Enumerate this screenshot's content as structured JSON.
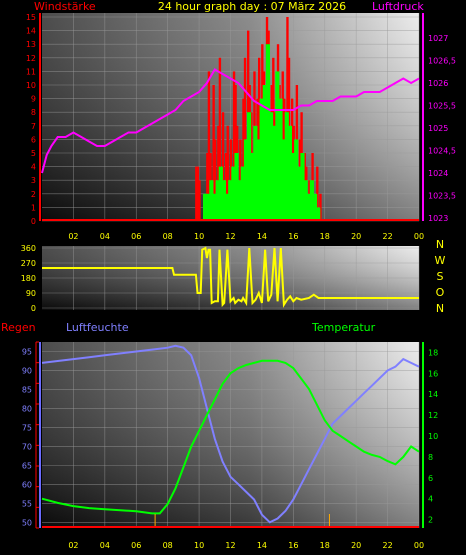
{
  "header": {
    "title": "24 hour graph day : 07 März 2026",
    "left": "Windstärke",
    "right": "Luftdruck"
  },
  "colors": {
    "wind_avg": "#00ff00",
    "wind_gust": "#ff0000",
    "pressure": "#ff00ff",
    "direction": "#ffff00",
    "humidity": "#8080ff",
    "temperature": "#00ff00",
    "rain": "#ff0000",
    "label_left": "#ff0000",
    "label_press": "#ff00ff"
  },
  "chart_data": [
    {
      "type": "bar",
      "panel": "wind",
      "x_ticks": [
        "02",
        "04",
        "06",
        "08",
        "10",
        "12",
        "14",
        "16",
        "18",
        "20",
        "22",
        "00"
      ],
      "y_ticks": [
        "0",
        "1",
        "2",
        "3",
        "4",
        "5",
        "6",
        "7",
        "8",
        "9",
        "10",
        "11",
        "12",
        "13",
        "14",
        "15"
      ],
      "ylim": [
        0,
        15
      ],
      "xlim": [
        0,
        24
      ],
      "series": [
        {
          "name": "gust",
          "points": [
            [
              9.8,
              4
            ],
            [
              9.9,
              4
            ],
            [
              10.0,
              3
            ],
            [
              10.5,
              5
            ],
            [
              10.6,
              11
            ],
            [
              10.7,
              5
            ],
            [
              10.9,
              10
            ],
            [
              11.0,
              6
            ],
            [
              11.2,
              7
            ],
            [
              11.3,
              12
            ],
            [
              11.5,
              8
            ],
            [
              11.7,
              5
            ],
            [
              11.8,
              7
            ],
            [
              12.0,
              6
            ],
            [
              12.2,
              11
            ],
            [
              12.3,
              10
            ],
            [
              12.4,
              7
            ],
            [
              12.6,
              6
            ],
            [
              12.8,
              9
            ],
            [
              12.9,
              12
            ],
            [
              13.1,
              14
            ],
            [
              13.2,
              10
            ],
            [
              13.3,
              8
            ],
            [
              13.5,
              11
            ],
            [
              13.7,
              9
            ],
            [
              13.8,
              12
            ],
            [
              14.0,
              13
            ],
            [
              14.1,
              11
            ],
            [
              14.3,
              15
            ],
            [
              14.4,
              14
            ],
            [
              14.6,
              10
            ],
            [
              14.7,
              12
            ],
            [
              14.8,
              8
            ],
            [
              15.0,
              13
            ],
            [
              15.1,
              10
            ],
            [
              15.3,
              11
            ],
            [
              15.4,
              9
            ],
            [
              15.6,
              15
            ],
            [
              15.7,
              12
            ],
            [
              15.9,
              9
            ],
            [
              16.0,
              7
            ],
            [
              16.2,
              10
            ],
            [
              16.4,
              6
            ],
            [
              16.5,
              8
            ],
            [
              16.7,
              5
            ],
            [
              16.8,
              4
            ],
            [
              17.0,
              3
            ],
            [
              17.2,
              5
            ],
            [
              17.5,
              4
            ],
            [
              17.7,
              2
            ]
          ]
        },
        {
          "name": "average",
          "points": [
            [
              10.3,
              2
            ],
            [
              10.5,
              2
            ],
            [
              10.7,
              3
            ],
            [
              10.9,
              2
            ],
            [
              11.1,
              3
            ],
            [
              11.3,
              4
            ],
            [
              11.5,
              3
            ],
            [
              11.7,
              2
            ],
            [
              11.9,
              3
            ],
            [
              12.1,
              4
            ],
            [
              12.3,
              5
            ],
            [
              12.5,
              3
            ],
            [
              12.7,
              4
            ],
            [
              12.9,
              6
            ],
            [
              13.1,
              8
            ],
            [
              13.3,
              5
            ],
            [
              13.5,
              7
            ],
            [
              13.7,
              6
            ],
            [
              13.9,
              9
            ],
            [
              14.1,
              10
            ],
            [
              14.3,
              13
            ],
            [
              14.5,
              8
            ],
            [
              14.7,
              7
            ],
            [
              14.9,
              11
            ],
            [
              15.1,
              9
            ],
            [
              15.3,
              6
            ],
            [
              15.5,
              8
            ],
            [
              15.7,
              7
            ],
            [
              15.9,
              5
            ],
            [
              16.1,
              6
            ],
            [
              16.3,
              4
            ],
            [
              16.5,
              5
            ],
            [
              16.7,
              3
            ],
            [
              16.9,
              2
            ],
            [
              17.1,
              3
            ],
            [
              17.3,
              2
            ],
            [
              17.5,
              1
            ]
          ]
        }
      ]
    },
    {
      "type": "line",
      "panel": "pressure",
      "y_ticks": [
        "1023",
        "1023,5",
        "1024",
        "1024,5",
        "1025",
        "1025,5",
        "1026",
        "1026,5",
        "1027"
      ],
      "ylim": [
        1023,
        1027.4
      ],
      "points": [
        [
          0,
          1024.0
        ],
        [
          0.3,
          1024.4
        ],
        [
          0.6,
          1024.6
        ],
        [
          1,
          1024.8
        ],
        [
          1.5,
          1024.8
        ],
        [
          2,
          1024.9
        ],
        [
          2.5,
          1024.8
        ],
        [
          3,
          1024.7
        ],
        [
          3.5,
          1024.6
        ],
        [
          4,
          1024.6
        ],
        [
          4.5,
          1024.7
        ],
        [
          5,
          1024.8
        ],
        [
          5.5,
          1024.9
        ],
        [
          6,
          1024.9
        ],
        [
          6.5,
          1025.0
        ],
        [
          7,
          1025.1
        ],
        [
          7.5,
          1025.2
        ],
        [
          8,
          1025.3
        ],
        [
          8.5,
          1025.4
        ],
        [
          9,
          1025.6
        ],
        [
          9.5,
          1025.7
        ],
        [
          10,
          1025.8
        ],
        [
          10.5,
          1026.0
        ],
        [
          11,
          1026.3
        ],
        [
          11.5,
          1026.2
        ],
        [
          12,
          1026.1
        ],
        [
          12.5,
          1026.0
        ],
        [
          13,
          1025.8
        ],
        [
          13.5,
          1025.6
        ],
        [
          14,
          1025.5
        ],
        [
          14.5,
          1025.4
        ],
        [
          15,
          1025.4
        ],
        [
          15.5,
          1025.4
        ],
        [
          16,
          1025.4
        ],
        [
          16.5,
          1025.5
        ],
        [
          17,
          1025.5
        ],
        [
          17.5,
          1025.6
        ],
        [
          18,
          1025.6
        ],
        [
          18.5,
          1025.6
        ],
        [
          19,
          1025.7
        ],
        [
          19.5,
          1025.7
        ],
        [
          20,
          1025.7
        ],
        [
          20.5,
          1025.8
        ],
        [
          21,
          1025.8
        ],
        [
          21.5,
          1025.8
        ],
        [
          22,
          1025.9
        ],
        [
          22.5,
          1026.0
        ],
        [
          23,
          1026.1
        ],
        [
          23.5,
          1026.0
        ],
        [
          24,
          1026.1
        ]
      ]
    },
    {
      "type": "line",
      "panel": "direction",
      "y_ticks": [
        "0",
        "90",
        "180",
        "270",
        "360"
      ],
      "right_labels": [
        "N",
        "W",
        "S",
        "O",
        "N"
      ],
      "ylim": [
        0,
        360
      ],
      "points": [
        [
          0,
          240
        ],
        [
          8.3,
          240
        ],
        [
          8.4,
          200
        ],
        [
          9,
          200
        ],
        [
          9.2,
          200
        ],
        [
          9.8,
          200
        ],
        [
          9.9,
          90
        ],
        [
          10.1,
          90
        ],
        [
          10.2,
          350
        ],
        [
          10.4,
          360
        ],
        [
          10.5,
          300
        ],
        [
          10.6,
          350
        ],
        [
          10.7,
          350
        ],
        [
          10.8,
          30
        ],
        [
          11,
          40
        ],
        [
          11.2,
          40
        ],
        [
          11.3,
          350
        ],
        [
          11.5,
          20
        ],
        [
          11.6,
          30
        ],
        [
          11.8,
          350
        ],
        [
          12,
          40
        ],
        [
          12.2,
          60
        ],
        [
          12.3,
          30
        ],
        [
          12.5,
          50
        ],
        [
          12.7,
          40
        ],
        [
          12.8,
          60
        ],
        [
          13,
          30
        ],
        [
          13.2,
          360
        ],
        [
          13.4,
          30
        ],
        [
          13.6,
          50
        ],
        [
          13.8,
          90
        ],
        [
          14,
          30
        ],
        [
          14.2,
          350
        ],
        [
          14.4,
          40
        ],
        [
          14.6,
          80
        ],
        [
          14.8,
          360
        ],
        [
          15,
          40
        ],
        [
          15.2,
          360
        ],
        [
          15.4,
          20
        ],
        [
          15.6,
          50
        ],
        [
          15.8,
          70
        ],
        [
          16,
          40
        ],
        [
          16.2,
          60
        ],
        [
          16.5,
          50
        ],
        [
          17,
          60
        ],
        [
          17.3,
          80
        ],
        [
          17.6,
          60
        ],
        [
          18,
          60
        ],
        [
          24,
          60
        ]
      ]
    },
    {
      "type": "line",
      "panel": "humidity",
      "y_ticks": [
        "50",
        "55",
        "60",
        "65",
        "70",
        "75",
        "80",
        "85",
        "90",
        "95"
      ],
      "ylim": [
        48.5,
        97.5
      ],
      "points": [
        [
          0,
          92
        ],
        [
          1,
          92.5
        ],
        [
          2,
          93
        ],
        [
          3,
          93.5
        ],
        [
          4,
          94
        ],
        [
          5,
          94.5
        ],
        [
          6,
          95
        ],
        [
          7,
          95.5
        ],
        [
          8,
          96
        ],
        [
          8.5,
          96.5
        ],
        [
          9,
          96
        ],
        [
          9.5,
          94
        ],
        [
          10,
          88
        ],
        [
          10.5,
          80
        ],
        [
          11,
          72
        ],
        [
          11.5,
          66
        ],
        [
          12,
          62
        ],
        [
          12.5,
          60
        ],
        [
          13,
          58
        ],
        [
          13.5,
          56
        ],
        [
          14,
          52
        ],
        [
          14.5,
          50
        ],
        [
          15,
          51
        ],
        [
          15.5,
          53
        ],
        [
          16,
          56
        ],
        [
          16.5,
          60
        ],
        [
          17,
          64
        ],
        [
          17.5,
          68
        ],
        [
          18,
          72
        ],
        [
          18.5,
          76
        ],
        [
          19,
          78
        ],
        [
          19.5,
          80
        ],
        [
          20,
          82
        ],
        [
          20.5,
          84
        ],
        [
          21,
          86
        ],
        [
          21.5,
          88
        ],
        [
          22,
          90
        ],
        [
          22.5,
          91
        ],
        [
          23,
          93
        ],
        [
          23.5,
          92
        ],
        [
          24,
          91
        ]
      ]
    },
    {
      "type": "line",
      "panel": "temperature",
      "y_ticks": [
        "2",
        "4",
        "6",
        "8",
        "10",
        "12",
        "14",
        "16",
        "18"
      ],
      "ylim": [
        1.2,
        19
      ],
      "points": [
        [
          0,
          4
        ],
        [
          1,
          3.6
        ],
        [
          2,
          3.3
        ],
        [
          3,
          3.1
        ],
        [
          4,
          3.0
        ],
        [
          5,
          2.9
        ],
        [
          6,
          2.8
        ],
        [
          7,
          2.6
        ],
        [
          7.5,
          2.6
        ],
        [
          8,
          3.5
        ],
        [
          8.5,
          5
        ],
        [
          9,
          7
        ],
        [
          9.5,
          9
        ],
        [
          10,
          10.5
        ],
        [
          10.5,
          12
        ],
        [
          11,
          13.5
        ],
        [
          11.5,
          15
        ],
        [
          12,
          16
        ],
        [
          12.5,
          16.5
        ],
        [
          13,
          16.8
        ],
        [
          13.5,
          17
        ],
        [
          14,
          17.2
        ],
        [
          14.5,
          17.2
        ],
        [
          15,
          17.2
        ],
        [
          15.5,
          17
        ],
        [
          16,
          16.5
        ],
        [
          16.5,
          15.5
        ],
        [
          17,
          14.5
        ],
        [
          17.5,
          13
        ],
        [
          18,
          11.5
        ],
        [
          18.5,
          10.5
        ],
        [
          19,
          10
        ],
        [
          19.5,
          9.5
        ],
        [
          20,
          9
        ],
        [
          20.5,
          8.5
        ],
        [
          21,
          8.2
        ],
        [
          21.5,
          8
        ],
        [
          22,
          7.6
        ],
        [
          22.5,
          7.3
        ],
        [
          23,
          8
        ],
        [
          23.5,
          9
        ],
        [
          24,
          8.5
        ]
      ]
    },
    {
      "type": "bar",
      "panel": "rain",
      "points": [
        [
          7.2,
          0.3
        ],
        [
          18.3,
          0.3
        ]
      ]
    }
  ],
  "lower": {
    "label_rain": "Regen",
    "label_humidity": "Luftfeuchte",
    "label_temperature": "Temperatur"
  },
  "lower_y_left": [
    "50",
    "55",
    "60",
    "65",
    "70",
    "75",
    "80",
    "85",
    "90",
    "95"
  ],
  "lower_y_right": [
    "2",
    "4",
    "6",
    "8",
    "10",
    "12",
    "14",
    "16",
    "18"
  ],
  "x_ticks": [
    "02",
    "04",
    "06",
    "08",
    "10",
    "12",
    "14",
    "16",
    "18",
    "20",
    "22",
    "00"
  ]
}
